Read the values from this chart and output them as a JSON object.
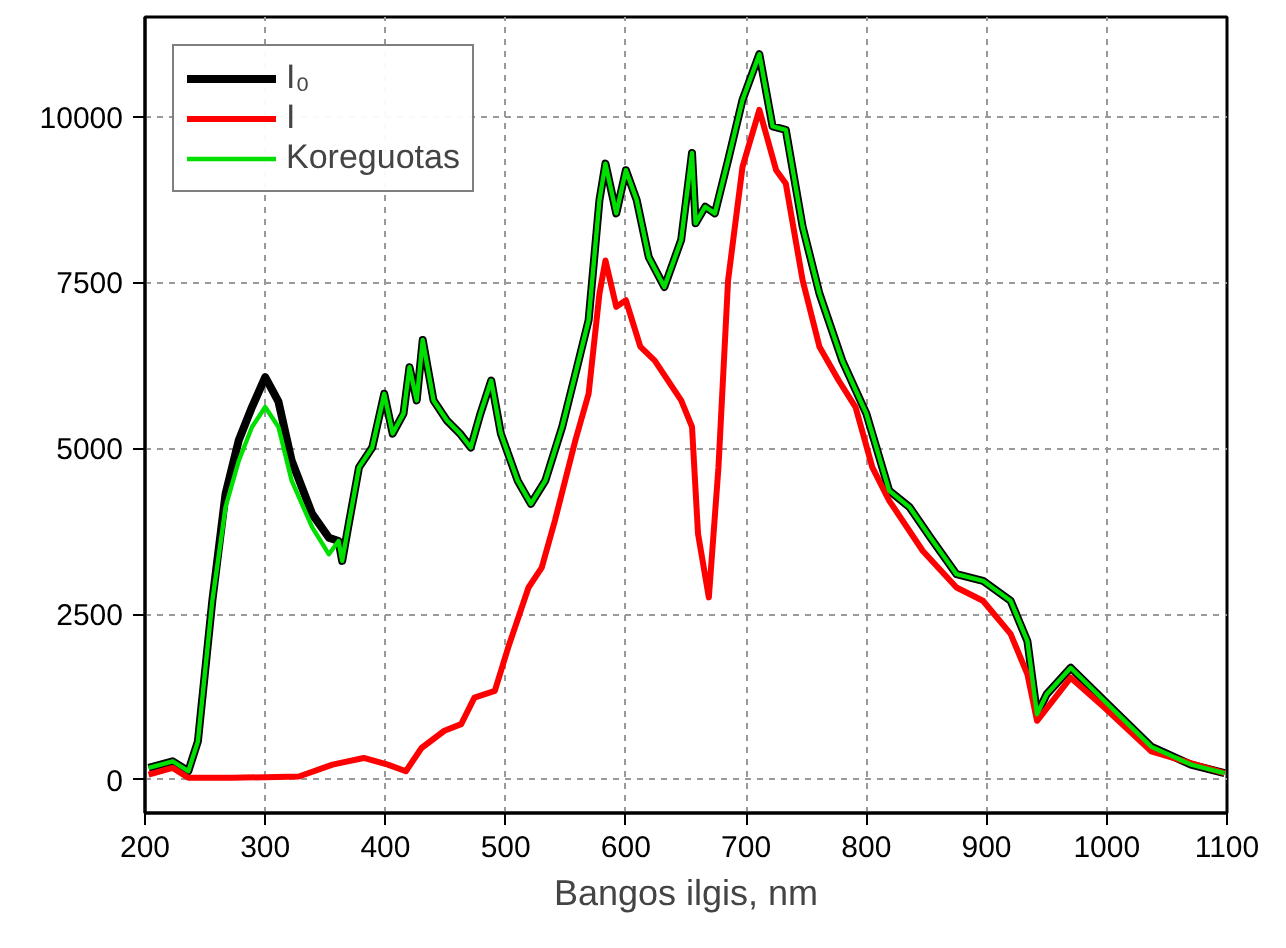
{
  "chart_data": {
    "type": "line",
    "xlabel": "Bangos ilgis, nm",
    "xlim": [
      200,
      1100
    ],
    "ylim": [
      -500,
      11500
    ],
    "xticks": [
      200,
      300,
      400,
      500,
      600,
      700,
      800,
      900,
      1000,
      1100
    ],
    "yticks": [
      0,
      2500,
      5000,
      7500,
      10000
    ],
    "grid": true,
    "legend": "top left",
    "marker": "none",
    "line_style": "solid",
    "series": [
      {
        "name": "I₀",
        "color": "#000000",
        "x": [
          203,
          223,
          236,
          244,
          256,
          267,
          278,
          289,
          300,
          306,
          311,
          322,
          339,
          353,
          361,
          364,
          369,
          378,
          389,
          399,
          406,
          415,
          420,
          426,
          431,
          440,
          451,
          462,
          471,
          479,
          488,
          496,
          510,
          521,
          533,
          547,
          558,
          569,
          578,
          583,
          592,
          600,
          609,
          619,
          632,
          646,
          655,
          658,
          666,
          674,
          685,
          697,
          711,
          722,
          733,
          747,
          761,
          780,
          800,
          819,
          836,
          853,
          875,
          897,
          920,
          934,
          942,
          950,
          970,
          998,
          1037,
          1070,
          1098
        ],
        "values": [
          180,
          280,
          130,
          580,
          2700,
          4310,
          5120,
          5620,
          6070,
          5870,
          5700,
          4810,
          4010,
          3650,
          3600,
          3300,
          3810,
          4710,
          5010,
          5820,
          5220,
          5520,
          6220,
          5720,
          6630,
          5720,
          5420,
          5220,
          5010,
          5520,
          6020,
          5220,
          4510,
          4160,
          4510,
          5320,
          6120,
          6930,
          8740,
          9290,
          8540,
          9190,
          8740,
          7880,
          7430,
          8140,
          9450,
          8390,
          8640,
          8540,
          9340,
          10250,
          10940,
          9850,
          9800,
          8340,
          7330,
          6320,
          5520,
          4360,
          4110,
          3660,
          3100,
          3000,
          2700,
          2090,
          990,
          1290,
          1690,
          1190,
          500,
          230,
          100
        ]
      },
      {
        "name": "I",
        "color": "#ff0000",
        "x": [
          203,
          223,
          236,
          272,
          328,
          356,
          382,
          402,
          417,
          430,
          449,
          463,
          474,
          491,
          502,
          519,
          530,
          541,
          558,
          569,
          578,
          583,
          592,
          600,
          612,
          624,
          646,
          655,
          660,
          669,
          677,
          685,
          697,
          711,
          725,
          733,
          747,
          761,
          777,
          791,
          805,
          819,
          847,
          875,
          897,
          920,
          934,
          942,
          970,
          998,
          1037,
          1098
        ],
        "values": [
          80,
          180,
          30,
          30,
          50,
          230,
          330,
          230,
          130,
          480,
          740,
          840,
          1240,
          1340,
          1990,
          2900,
          3200,
          3910,
          5120,
          5820,
          7330,
          7830,
          7130,
          7230,
          6530,
          6320,
          5720,
          5320,
          3710,
          2750,
          4710,
          7530,
          9240,
          10100,
          9190,
          8990,
          7530,
          6530,
          6020,
          5620,
          4710,
          4210,
          3450,
          2900,
          2700,
          2200,
          1590,
          890,
          1540,
          1090,
          430,
          100
        ]
      },
      {
        "name": "Koreguotas",
        "color": "#00e000",
        "x": [
          203,
          223,
          236,
          244,
          256,
          267,
          278,
          289,
          300,
          311,
          322,
          339,
          353,
          361,
          364,
          369,
          378,
          389,
          399,
          406,
          415,
          420,
          426,
          431,
          440,
          451,
          462,
          471,
          479,
          488,
          496,
          510,
          521,
          533,
          547,
          558,
          569,
          578,
          583,
          592,
          600,
          609,
          619,
          632,
          646,
          655,
          658,
          666,
          674,
          685,
          697,
          711,
          722,
          733,
          747,
          761,
          780,
          800,
          819,
          836,
          853,
          875,
          897,
          920,
          934,
          942,
          950,
          970,
          998,
          1037,
          1070,
          1098
        ],
        "values": [
          180,
          280,
          130,
          580,
          2700,
          4110,
          4810,
          5320,
          5620,
          5320,
          4510,
          3810,
          3400,
          3600,
          3300,
          3810,
          4710,
          5010,
          5820,
          5220,
          5520,
          6220,
          5720,
          6630,
          5720,
          5420,
          5220,
          5010,
          5520,
          6020,
          5220,
          4510,
          4160,
          4510,
          5320,
          6120,
          6930,
          8740,
          9290,
          8540,
          9190,
          8740,
          7880,
          7430,
          8140,
          9450,
          8390,
          8640,
          8540,
          9340,
          10250,
          10940,
          9850,
          9800,
          8340,
          7330,
          6320,
          5520,
          4360,
          4110,
          3660,
          3100,
          3000,
          2700,
          2090,
          990,
          1290,
          1690,
          1190,
          500,
          230,
          100
        ]
      }
    ]
  }
}
